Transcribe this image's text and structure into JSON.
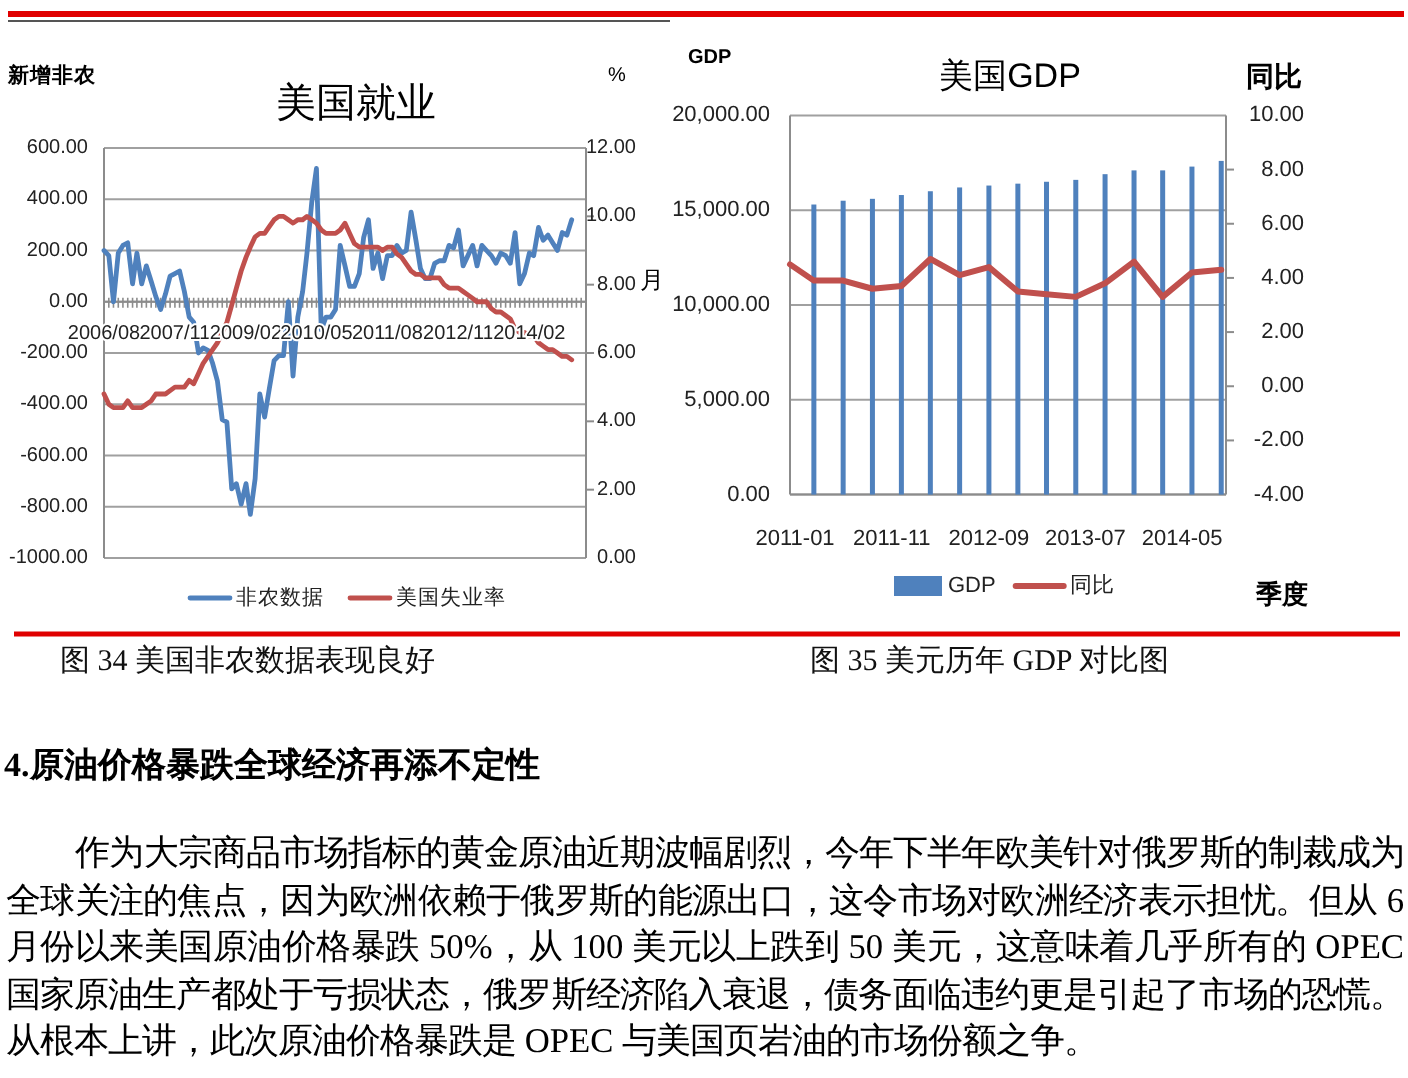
{
  "chart_data": [
    {
      "type": "line",
      "title": "美国就业",
      "ylabel": "新增非农",
      "y2label": "%",
      "xlabel": "月",
      "x": [
        "2006-08",
        "2006-09",
        "2006-10",
        "2006-11",
        "2006-12",
        "2007-01",
        "2007-02",
        "2007-03",
        "2007-04",
        "2007-05",
        "2007-06",
        "2007-07",
        "2007-08",
        "2007-09",
        "2007-10",
        "2007-11",
        "2007-12",
        "2008-01",
        "2008-02",
        "2008-03",
        "2008-04",
        "2008-05",
        "2008-06",
        "2008-07",
        "2008-08",
        "2008-09",
        "2008-10",
        "2008-11",
        "2008-12",
        "2009-01",
        "2009-02",
        "2009-03",
        "2009-04",
        "2009-05",
        "2009-06",
        "2009-07",
        "2009-08",
        "2009-09",
        "2009-10",
        "2009-11",
        "2009-12",
        "2010-01",
        "2010-02",
        "2010-03",
        "2010-04",
        "2010-05",
        "2010-06",
        "2010-07",
        "2010-08",
        "2010-09",
        "2010-10",
        "2010-11",
        "2010-12",
        "2011-01",
        "2011-02",
        "2011-03",
        "2011-04",
        "2011-05",
        "2011-06",
        "2011-07",
        "2011-08",
        "2011-09",
        "2011-10",
        "2011-11",
        "2011-12",
        "2012-01",
        "2012-02",
        "2012-03",
        "2012-04",
        "2012-05",
        "2012-06",
        "2012-07",
        "2012-08",
        "2012-09",
        "2012-10",
        "2012-11",
        "2012-12",
        "2013-01",
        "2013-02",
        "2013-03",
        "2013-04",
        "2013-05",
        "2013-06",
        "2013-07",
        "2013-08",
        "2013-09",
        "2013-10",
        "2013-11",
        "2013-12",
        "2014-01",
        "2014-02",
        "2014-03",
        "2014-04",
        "2014-05",
        "2014-06",
        "2014-07",
        "2014-08",
        "2014-09",
        "2014-10",
        "2014-11"
      ],
      "series": [
        {
          "name": "非农数据",
          "color": "#4f81bd",
          "values": [
            200,
            180,
            0,
            190,
            220,
            230,
            70,
            190,
            70,
            140,
            80,
            20,
            -30,
            30,
            100,
            110,
            120,
            40,
            -60,
            -80,
            -200,
            -180,
            -190,
            -240,
            -310,
            -460,
            -470,
            -730,
            -710,
            -790,
            -710,
            -830,
            -690,
            -360,
            -450,
            -340,
            -230,
            -210,
            -210,
            0,
            -290,
            -60,
            40,
            190,
            390,
            520,
            -110,
            -60,
            -60,
            -30,
            220,
            140,
            60,
            60,
            110,
            250,
            320,
            130,
            190,
            90,
            180,
            180,
            220,
            190,
            200,
            350,
            240,
            130,
            90,
            90,
            150,
            160,
            160,
            220,
            210,
            280,
            140,
            180,
            220,
            140,
            220,
            200,
            180,
            150,
            190,
            180,
            150,
            270,
            70,
            110,
            190,
            180,
            290,
            240,
            260,
            230,
            200,
            270,
            260,
            320
          ]
        },
        {
          "name": "美国失业率",
          "color": "#c0504d",
          "axis": "y2",
          "values": [
            4.8,
            4.5,
            4.4,
            4.4,
            4.4,
            4.6,
            4.4,
            4.4,
            4.4,
            4.5,
            4.6,
            4.8,
            4.8,
            4.8,
            4.9,
            5.0,
            5.0,
            5.0,
            5.2,
            5.1,
            5.4,
            5.7,
            5.9,
            6.1,
            6.3,
            6.6,
            6.9,
            7.4,
            7.9,
            8.4,
            8.8,
            9.1,
            9.4,
            9.5,
            9.5,
            9.7,
            9.9,
            10.0,
            10.0,
            9.9,
            9.8,
            9.9,
            9.9,
            10.0,
            9.9,
            9.8,
            9.6,
            9.5,
            9.5,
            9.5,
            9.6,
            9.8,
            9.5,
            9.2,
            9.1,
            9.1,
            9.1,
            9.1,
            9.1,
            9.0,
            9.1,
            9.1,
            8.9,
            8.8,
            8.6,
            8.4,
            8.3,
            8.3,
            8.2,
            8.2,
            8.2,
            8.2,
            8.0,
            7.9,
            7.9,
            7.9,
            7.8,
            7.7,
            7.6,
            7.5,
            7.5,
            7.5,
            7.3,
            7.2,
            7.2,
            7.1,
            7.0,
            6.7,
            6.6,
            6.6,
            6.5,
            6.5,
            6.3,
            6.2,
            6.1,
            6.1,
            6.0,
            5.9,
            5.9,
            5.8
          ]
        }
      ],
      "xlim": [
        "2006-08",
        "2015-02"
      ],
      "xticks": [
        {
          "value": "2006-08",
          "label": "2006/08"
        },
        {
          "value": "2007-11",
          "label": "2007/11"
        },
        {
          "value": "2009-02",
          "label": "2009/02"
        },
        {
          "value": "2010-05",
          "label": "2010/05"
        },
        {
          "value": "2011-08",
          "label": "2011/08"
        },
        {
          "value": "2012-11",
          "label": "2012/11"
        },
        {
          "value": "2014-02",
          "label": "2014/02"
        }
      ],
      "ylim": [
        -1000,
        600
      ],
      "yticks": [
        {
          "value": -1000,
          "label": "-1000.00"
        },
        {
          "value": -800,
          "label": "-800.00"
        },
        {
          "value": -600,
          "label": "-600.00"
        },
        {
          "value": -400,
          "label": "-400.00"
        },
        {
          "value": -200,
          "label": "-200.00"
        },
        {
          "value": 0,
          "label": "0.00"
        },
        {
          "value": 200,
          "label": "200.00"
        },
        {
          "value": 400,
          "label": "400.00"
        },
        {
          "value": 600,
          "label": "600.00"
        }
      ],
      "y2lim": [
        0,
        12
      ],
      "y2ticks": [
        {
          "value": 0,
          "label": "0.00"
        },
        {
          "value": 2,
          "label": "2.00"
        },
        {
          "value": 4,
          "label": "4.00"
        },
        {
          "value": 6,
          "label": "6.00"
        },
        {
          "value": 8,
          "label": "8.00"
        },
        {
          "value": 10,
          "label": "10.00"
        },
        {
          "value": 12,
          "label": "12.00"
        }
      ],
      "grid": "y",
      "legend": "bottom",
      "annotations": [
        "图 34 美国非农数据表现良好"
      ]
    },
    {
      "type": "bar",
      "title": "美国GDP",
      "ylabel": "GDP",
      "y2label": "同比",
      "xlabel": "季度",
      "x": [
        "2011-03",
        "2011-06",
        "2011-09",
        "2011-12",
        "2012-03",
        "2012-06",
        "2012-09",
        "2012-12",
        "2013-03",
        "2013-06",
        "2013-09",
        "2013-12",
        "2014-03",
        "2014-06",
        "2014-09"
      ],
      "series": [
        {
          "name": "GDP",
          "color": "#4f81bd",
          "values": [
            15300,
            15500,
            15600,
            15800,
            16000,
            16200,
            16300,
            16400,
            16500,
            16600,
            16900,
            17100,
            17100,
            17300,
            17600
          ]
        },
        {
          "name": "同比",
          "type": "line",
          "axis": "y2",
          "color": "#c0504d",
          "x": [
            "2010-12-16",
            "2011-03",
            "2011-06",
            "2011-09",
            "2011-12",
            "2012-03",
            "2012-06",
            "2012-09",
            "2012-12",
            "2013-03",
            "2013-06",
            "2013-09",
            "2013-12",
            "2014-03",
            "2014-06",
            "2014-09"
          ],
          "values": [
            4.5,
            3.9,
            3.9,
            3.6,
            3.7,
            4.7,
            4.1,
            4.4,
            3.5,
            3.4,
            3.3,
            3.8,
            4.6,
            3.3,
            4.2,
            4.3
          ]
        }
      ],
      "xlim": [
        "2010-12-16",
        "2014-09-16"
      ],
      "xticks": [
        {
          "value": "2011-01",
          "label": "2011-01"
        },
        {
          "value": "2011-11",
          "label": "2011-11"
        },
        {
          "value": "2012-09",
          "label": "2012-09"
        },
        {
          "value": "2013-07",
          "label": "2013-07"
        },
        {
          "value": "2014-05",
          "label": "2014-05"
        }
      ],
      "ylim": [
        0,
        20000
      ],
      "yticks": [
        {
          "value": 0,
          "label": "0.00"
        },
        {
          "value": 5000,
          "label": "5,000.00"
        },
        {
          "value": 10000,
          "label": "10,000.00"
        },
        {
          "value": 15000,
          "label": "15,000.00"
        },
        {
          "value": 20000,
          "label": "20,000.00"
        }
      ],
      "y2lim": [
        -4,
        10
      ],
      "y2ticks": [
        {
          "value": -4,
          "label": "-4.00"
        },
        {
          "value": -2,
          "label": "-2.00"
        },
        {
          "value": 0,
          "label": "0.00"
        },
        {
          "value": 2,
          "label": "2.00"
        },
        {
          "value": 4,
          "label": "4.00"
        },
        {
          "value": 6,
          "label": "6.00"
        },
        {
          "value": 8,
          "label": "8.00"
        },
        {
          "value": 10,
          "label": "10.00"
        }
      ],
      "grid": "y",
      "legend": "bottom",
      "annotations": [
        "图 35 美元历年 GDP 对比图",
        "4.原油价格暴跌全球经济再添不定性",
        "作为大宗商品市场指标的黄金原油近期波幅剧烈，今年下半年欧美针对俄罗斯的制裁成为全球关注的焦点，因为欧洲依赖于俄罗斯的能源出口，这令市场对欧洲经济表示担忧。但从 6 月份以来美国原油价格暴跌 50%，从 100 美元以上跌到 50 美元，这意味着几乎所有的 OPEC 国家原油生产都处于亏损状态，俄罗斯经济陷入衰退，债务面临违约更是引起了市场的恐慌。从根本上讲，此次原油价格暴跌是 OPEC 与美国页岩油的市场份额之争。"
      ]
    }
  ]
}
